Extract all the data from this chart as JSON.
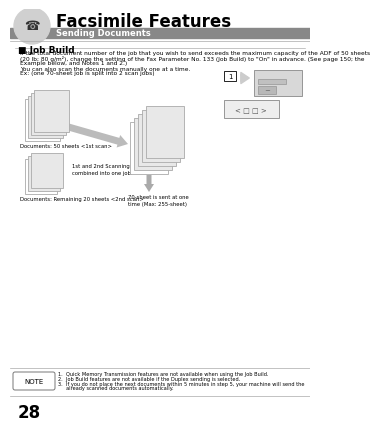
{
  "title": "Facsimile Features",
  "subtitle": "Sending Documents",
  "section_title": "Job Build",
  "body_text": [
    "If the total document number of the job that you wish to send exceeds the maximum capacity of the ADF of 50 sheets",
    "(20 lb; 80 g/m²), change the setting of the Fax Parameter No. 133 (Job Build) to \"On\" in advance. (See page 150; the",
    "Example below, and Notes 1 and 2.)",
    "You can also scan the documents manually one at a time.",
    "Ex: (one 70-sheet job is split into 2 scan jobs)"
  ],
  "label1": "Documents: 50 sheets <1st scan>",
  "label2": "1st and 2nd Scanning Data is\ncombined into one job.",
  "label3": "Documents: Remaining 20 sheets <2nd scan>",
  "label4": "70-sheet is sent at one\ntime (Max: 255-sheet)",
  "note_title": "NOTE",
  "note_lines": [
    "1.  Quick Memory Transmission features are not available when using the Job Build.",
    "2.  Job Build features are not available if the Duplex sending is selected.",
    "3.  If you do not place the next documents within 5 minutes in step 5, your machine will send the",
    "     already scanned documents automatically."
  ],
  "page_num": "28",
  "bg_color": "#ffffff",
  "header_bg": "#c8c8c8",
  "subheader_bg": "#888888",
  "icon_bg": "#d0d0d0"
}
